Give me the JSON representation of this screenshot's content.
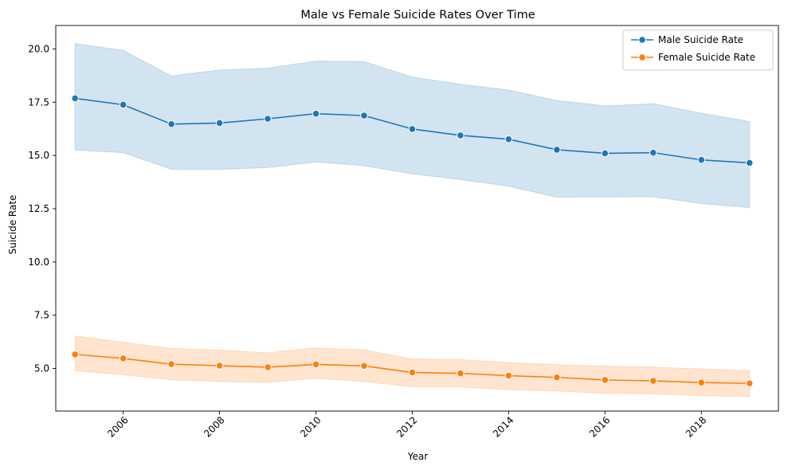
{
  "chart_data": {
    "type": "line",
    "title": "Male vs Female Suicide Rates Over Time",
    "xlabel": "Year",
    "ylabel": "Suicide Rate",
    "xlim": [
      2004.6,
      2019.6
    ],
    "ylim": [
      3.0,
      21.1
    ],
    "xticks": [
      "2006",
      "2008",
      "2010",
      "2012",
      "2014",
      "2016",
      "2018"
    ],
    "yticks": [
      "5.0",
      "7.5",
      "10.0",
      "12.5",
      "15.0",
      "17.5",
      "20.0"
    ],
    "x": [
      2005,
      2006,
      2007,
      2008,
      2009,
      2010,
      2011,
      2012,
      2013,
      2014,
      2015,
      2016,
      2017,
      2018,
      2019
    ],
    "legend_position": "upper right",
    "grid": false,
    "series": [
      {
        "name": "Male Suicide Rate",
        "color": "#1f77b4",
        "values": [
          17.68,
          17.38,
          16.47,
          16.52,
          16.72,
          16.96,
          16.87,
          16.24,
          15.94,
          15.76,
          15.27,
          15.1,
          15.13,
          14.79,
          14.65
        ],
        "ci_lower": [
          15.25,
          15.13,
          14.35,
          14.34,
          14.43,
          14.69,
          14.52,
          14.13,
          13.87,
          13.55,
          13.04,
          13.05,
          13.06,
          12.74,
          12.55
        ],
        "ci_upper": [
          20.25,
          19.93,
          18.73,
          19.01,
          19.1,
          19.43,
          19.41,
          18.68,
          18.34,
          18.07,
          17.58,
          17.33,
          17.43,
          16.98,
          16.6
        ]
      },
      {
        "name": "Female Suicide Rate",
        "color": "#ff7f0e",
        "values": [
          5.66,
          5.47,
          5.2,
          5.13,
          5.06,
          5.19,
          5.12,
          4.81,
          4.77,
          4.66,
          4.58,
          4.46,
          4.42,
          4.34,
          4.3
        ],
        "ci_lower": [
          4.9,
          4.7,
          4.47,
          4.39,
          4.34,
          4.54,
          4.39,
          4.14,
          4.14,
          4.0,
          3.94,
          3.83,
          3.81,
          3.72,
          3.68
        ],
        "ci_upper": [
          6.53,
          6.23,
          5.94,
          5.86,
          5.74,
          5.96,
          5.87,
          5.44,
          5.42,
          5.27,
          5.18,
          5.11,
          5.06,
          4.98,
          4.9
        ]
      }
    ]
  }
}
